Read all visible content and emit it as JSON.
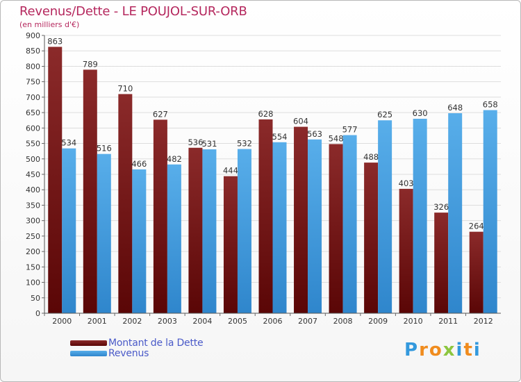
{
  "title": "Revenus/Dette - LE POUJOL-SUR-ORB",
  "subtitle": "(en milliers d'€)",
  "legend": [
    {
      "label": "Montant de la Dette",
      "color": "#6b0a0a"
    },
    {
      "label": "Revenus",
      "color": "#3d9ee0"
    }
  ],
  "logo": {
    "text": "Proxiti",
    "letters": [
      {
        "char": "P",
        "color": "#3399dd"
      },
      {
        "char": "r",
        "color": "#f08c1e"
      },
      {
        "char": "o",
        "color": "#f08c1e"
      },
      {
        "char": "x",
        "color": "#8cc63f"
      },
      {
        "char": "i",
        "color": "#3399dd"
      },
      {
        "char": "t",
        "color": "#f08c1e"
      },
      {
        "char": "i",
        "color": "#3399dd"
      }
    ]
  },
  "chart_data": {
    "type": "bar",
    "title": "Revenus/Dette - LE POUJOL-SUR-ORB",
    "ylabel": "(en milliers d'€)",
    "xlabel": "",
    "categories": [
      "2000",
      "2001",
      "2002",
      "2003",
      "2004",
      "2005",
      "2006",
      "2007",
      "2008",
      "2009",
      "2010",
      "2011",
      "2012"
    ],
    "series": [
      {
        "name": "Montant de la Dette",
        "color": "#7a1c1c",
        "values": [
          863,
          789,
          710,
          627,
          536,
          444,
          628,
          604,
          548,
          488,
          403,
          326,
          264
        ]
      },
      {
        "name": "Revenus",
        "color": "#4ea7e6",
        "values": [
          534,
          516,
          466,
          482,
          531,
          532,
          554,
          563,
          577,
          625,
          630,
          648,
          658
        ]
      }
    ],
    "ylim": [
      0,
      900
    ],
    "yticks": [
      0,
      50,
      100,
      150,
      200,
      250,
      300,
      350,
      400,
      450,
      500,
      550,
      600,
      650,
      700,
      750,
      800,
      850,
      900
    ],
    "grid": true,
    "legend_position": "bottom-left"
  }
}
